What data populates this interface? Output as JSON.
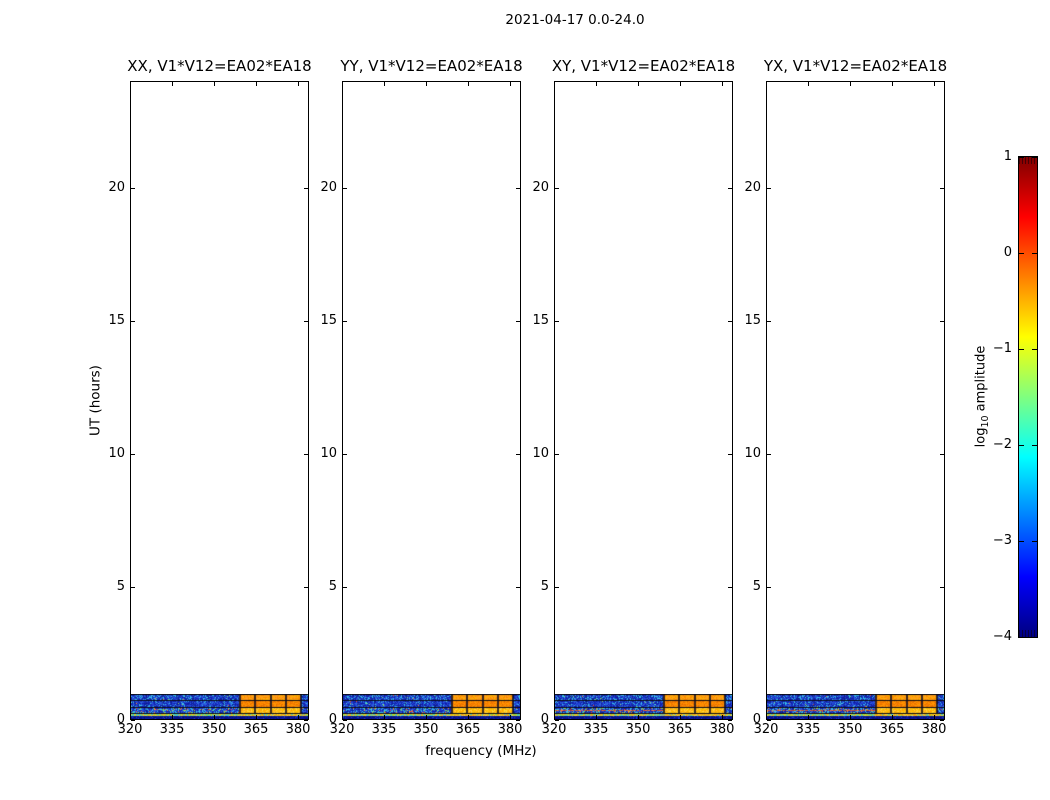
{
  "chart_data": {
    "type": "heatmap",
    "title": "2021-04-17 0.0-24.0",
    "panels": [
      {
        "pol": "XX",
        "title": "XX, V1*V12=EA02*EA18",
        "features": {
          "red_streak_band": false
        }
      },
      {
        "pol": "YY",
        "title": "YY, V1*V12=EA02*EA18",
        "features": {
          "red_streak_band": false
        }
      },
      {
        "pol": "XY",
        "title": "XY, V1*V12=EA02*EA18",
        "features": {
          "red_streak_band": true
        }
      },
      {
        "pol": "YX",
        "title": "YX, V1*V12=EA02*EA18",
        "features": {
          "red_streak_band": true
        }
      }
    ],
    "x_axis": {
      "label": "frequency (MHz)",
      "range": [
        320,
        384
      ],
      "ticks": [
        320,
        335,
        350,
        365,
        380
      ]
    },
    "y_axis": {
      "label": "UT (hours)",
      "range": [
        0,
        24
      ],
      "ticks": [
        0,
        5,
        10,
        15,
        20
      ]
    },
    "colorbar": {
      "label": "log10 amplitude",
      "label_parts": [
        "log",
        "10",
        " amplitude"
      ],
      "range": [
        -4,
        1
      ],
      "ticks": [
        1,
        0,
        -1,
        -2,
        -3,
        -4
      ],
      "tick_labels": [
        "1",
        "0",
        "−1",
        "−2",
        "−3",
        "−4"
      ],
      "colormap": "jet",
      "gradient_stops": [
        [
          "#800000",
          0
        ],
        [
          "#ff0000",
          12.5
        ],
        [
          "#ffff00",
          37.5
        ],
        [
          "#00ffff",
          62.5
        ],
        [
          "#0000ff",
          87.5
        ],
        [
          "#000080",
          100
        ]
      ]
    },
    "data_summary": {
      "occupied_ut_range": [
        0.0,
        1.0
      ],
      "empty_ut_range": [
        1.0,
        24.0
      ],
      "low_amplitude_freq_mhz": [
        320,
        359
      ],
      "low_amplitude_log10": [
        -3.5,
        -2.0
      ],
      "rfi_freq_mhz": [
        359,
        381.3
      ],
      "rfi_log10": [
        -1.0,
        -0.3
      ],
      "channel_width_mhz": 5.5714,
      "bottom_band_log10": -3.8
    },
    "strip_palettes": {
      "separator": "#0a0a14",
      "blue_dark": [
        "#101ea6",
        "#1628b8",
        "#1a35cc",
        "#0f1f9e"
      ],
      "blue_mid": [
        "#2a52dc",
        "#2e66e2",
        "#2448d0"
      ],
      "cyan": [
        "#2fb9e8",
        "#35cfe0",
        "#3ac2f0"
      ],
      "bright": [
        "#59e0c8",
        "#8ae06a"
      ],
      "green_yellow": [
        "#bddc30",
        "#7fe050"
      ],
      "warm_speckle": [
        "#ff9030",
        "#ff5025"
      ],
      "orange_a": [
        "#ffa01e",
        "#fb8c00",
        "#ffb300",
        "#ff9818"
      ],
      "orange_b": [
        "#ff8a00",
        "#f57c00",
        "#ff9800",
        "#e87000"
      ],
      "yellow_c": [
        "#ffc400",
        "#ffd740",
        "#ffab00",
        "#ffb820"
      ],
      "strip_d": [
        "#ccdf2e",
        "#8fe24a",
        "#3cc8ea",
        "#ffb024",
        "#56d8b8",
        "#e8d838"
      ],
      "navy": [
        "#050d7a",
        "#081290",
        "#0a1a9e",
        "#060f86"
      ],
      "navy_speck": "#1c39c8",
      "red_streak": [
        "#e06028",
        "#ff7840",
        "#d05020"
      ]
    }
  }
}
